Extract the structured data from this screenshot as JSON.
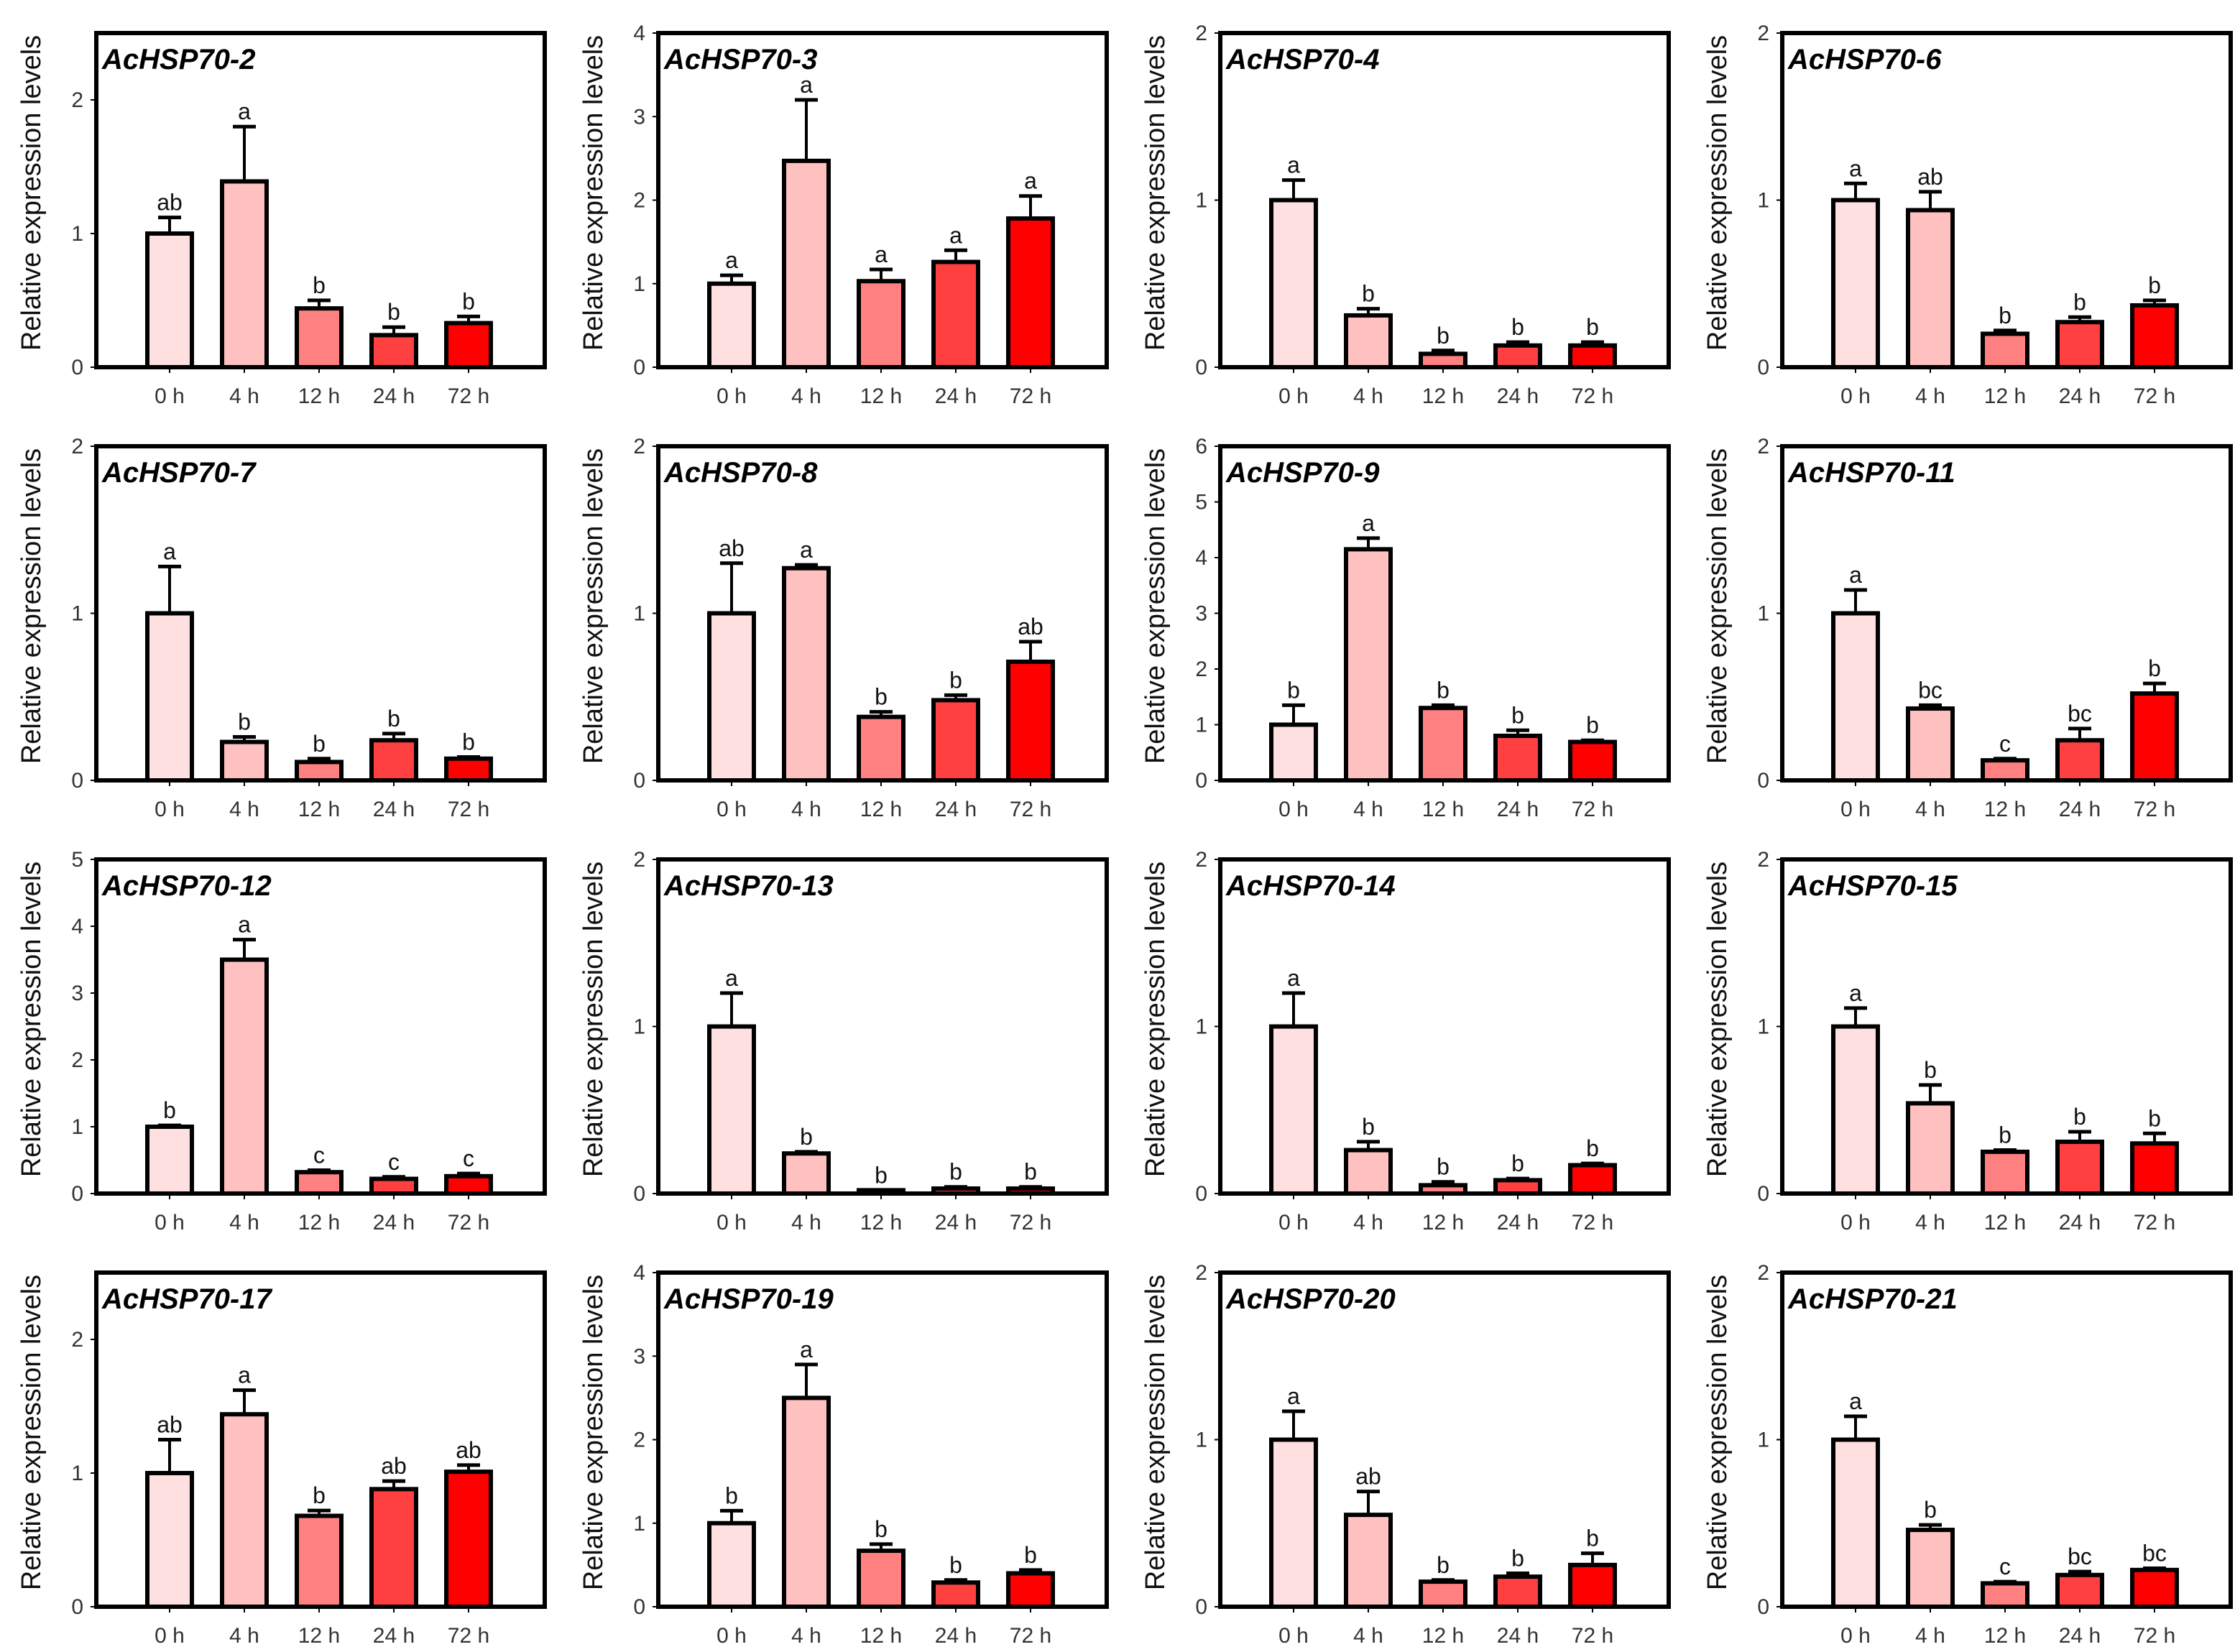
{
  "chart_data": {
    "type": "bar",
    "categories": [
      "0 h",
      "4 h",
      "12 h",
      "24 h",
      "72 h"
    ],
    "ylabel": "Relative expression levels",
    "bar_colors": [
      "#FFE0E0",
      "#FFC0C0",
      "#FF8080",
      "#FF4040",
      "#FF0000"
    ],
    "charts": [
      {
        "title": "AcHSP70-2",
        "ylim": [
          0,
          2.5
        ],
        "yticks": [
          "0",
          "1",
          "2"
        ],
        "values": [
          1.0,
          1.39,
          0.44,
          0.24,
          0.33
        ],
        "errors": [
          0.12,
          0.41,
          0.06,
          0.06,
          0.05
        ],
        "letters": [
          "ab",
          "a",
          "b",
          "b",
          "b"
        ]
      },
      {
        "title": "AcHSP70-3",
        "ylim": [
          0,
          4
        ],
        "yticks": [
          "0",
          "1",
          "2",
          "3",
          "4"
        ],
        "values": [
          1.0,
          2.47,
          1.03,
          1.26,
          1.78
        ],
        "errors": [
          0.1,
          0.73,
          0.14,
          0.14,
          0.27
        ],
        "letters": [
          "a",
          "a",
          "a",
          "a",
          "a"
        ]
      },
      {
        "title": "AcHSP70-4",
        "ylim": [
          0,
          2
        ],
        "yticks": [
          "0",
          "1",
          "2"
        ],
        "values": [
          1.0,
          0.31,
          0.08,
          0.13,
          0.13
        ],
        "errors": [
          0.12,
          0.04,
          0.02,
          0.02,
          0.02
        ],
        "letters": [
          "a",
          "b",
          "b",
          "b",
          "b"
        ]
      },
      {
        "title": "AcHSP70-6",
        "ylim": [
          0,
          2
        ],
        "yticks": [
          "0",
          "1",
          "2"
        ],
        "values": [
          1.0,
          0.94,
          0.2,
          0.27,
          0.37
        ],
        "errors": [
          0.1,
          0.11,
          0.02,
          0.03,
          0.03
        ],
        "letters": [
          "a",
          "ab",
          "b",
          "b",
          "b"
        ]
      },
      {
        "title": "AcHSP70-7",
        "ylim": [
          0,
          2
        ],
        "yticks": [
          "0",
          "1",
          "2"
        ],
        "values": [
          1.0,
          0.23,
          0.11,
          0.24,
          0.13
        ],
        "errors": [
          0.28,
          0.03,
          0.02,
          0.04,
          0.01
        ],
        "letters": [
          "a",
          "b",
          "b",
          "b",
          "b"
        ]
      },
      {
        "title": "AcHSP70-8",
        "ylim": [
          0,
          2
        ],
        "yticks": [
          "0",
          "1",
          "2"
        ],
        "values": [
          1.0,
          1.27,
          0.38,
          0.48,
          0.71
        ],
        "errors": [
          0.3,
          0.02,
          0.03,
          0.03,
          0.12
        ],
        "letters": [
          "ab",
          "a",
          "b",
          "b",
          "ab"
        ]
      },
      {
        "title": "AcHSP70-9",
        "ylim": [
          0,
          6
        ],
        "yticks": [
          "0",
          "1",
          "2",
          "3",
          "4",
          "5",
          "6"
        ],
        "values": [
          1.0,
          4.15,
          1.3,
          0.8,
          0.69
        ],
        "errors": [
          0.35,
          0.2,
          0.05,
          0.1,
          0.03
        ],
        "letters": [
          "b",
          "a",
          "b",
          "b",
          "b"
        ]
      },
      {
        "title": "AcHSP70-11",
        "ylim": [
          0,
          2
        ],
        "yticks": [
          "0",
          "1",
          "2"
        ],
        "values": [
          1.0,
          0.43,
          0.12,
          0.24,
          0.52
        ],
        "errors": [
          0.14,
          0.02,
          0.01,
          0.07,
          0.06
        ],
        "letters": [
          "a",
          "bc",
          "c",
          "bc",
          "b"
        ]
      },
      {
        "title": "AcHSP70-12",
        "ylim": [
          0,
          5
        ],
        "yticks": [
          "0",
          "1",
          "2",
          "3",
          "4",
          "5"
        ],
        "values": [
          1.0,
          3.5,
          0.32,
          0.22,
          0.26
        ],
        "errors": [
          0.02,
          0.3,
          0.03,
          0.03,
          0.04
        ],
        "letters": [
          "b",
          "a",
          "c",
          "c",
          "c"
        ]
      },
      {
        "title": "AcHSP70-13",
        "ylim": [
          0,
          2
        ],
        "yticks": [
          "0",
          "1",
          "2"
        ],
        "values": [
          1.0,
          0.24,
          0.02,
          0.03,
          0.03
        ],
        "errors": [
          0.2,
          0.01,
          0.0,
          0.01,
          0.01
        ],
        "letters": [
          "a",
          "b",
          "b",
          "b",
          "b"
        ]
      },
      {
        "title": "AcHSP70-14",
        "ylim": [
          0,
          2
        ],
        "yticks": [
          "0",
          "1",
          "2"
        ],
        "values": [
          1.0,
          0.26,
          0.05,
          0.08,
          0.17
        ],
        "errors": [
          0.2,
          0.05,
          0.02,
          0.01,
          0.01
        ],
        "letters": [
          "a",
          "b",
          "b",
          "b",
          "b"
        ]
      },
      {
        "title": "AcHSP70-15",
        "ylim": [
          0,
          2
        ],
        "yticks": [
          "0",
          "1",
          "2"
        ],
        "values": [
          1.0,
          0.54,
          0.25,
          0.31,
          0.3
        ],
        "errors": [
          0.11,
          0.11,
          0.01,
          0.06,
          0.06
        ],
        "letters": [
          "a",
          "b",
          "b",
          "b",
          "b"
        ]
      },
      {
        "title": "AcHSP70-17",
        "ylim": [
          0,
          2.5
        ],
        "yticks": [
          "0",
          "1",
          "2"
        ],
        "values": [
          1.0,
          1.44,
          0.68,
          0.88,
          1.01
        ],
        "errors": [
          0.25,
          0.18,
          0.04,
          0.06,
          0.05
        ],
        "letters": [
          "ab",
          "a",
          "b",
          "ab",
          "ab"
        ]
      },
      {
        "title": "AcHSP70-19",
        "ylim": [
          0,
          4
        ],
        "yticks": [
          "0",
          "1",
          "2",
          "3",
          "4"
        ],
        "values": [
          1.0,
          2.5,
          0.67,
          0.29,
          0.4
        ],
        "errors": [
          0.15,
          0.4,
          0.08,
          0.03,
          0.04
        ],
        "letters": [
          "b",
          "a",
          "b",
          "b",
          "b"
        ]
      },
      {
        "title": "AcHSP70-20",
        "ylim": [
          0,
          2
        ],
        "yticks": [
          "0",
          "1",
          "2"
        ],
        "values": [
          1.0,
          0.55,
          0.15,
          0.18,
          0.25
        ],
        "errors": [
          0.17,
          0.14,
          0.01,
          0.02,
          0.07
        ],
        "letters": [
          "a",
          "ab",
          "b",
          "b",
          "b"
        ]
      },
      {
        "title": "AcHSP70-21",
        "ylim": [
          0,
          2
        ],
        "yticks": [
          "0",
          "1",
          "2"
        ],
        "values": [
          1.0,
          0.46,
          0.14,
          0.19,
          0.22
        ],
        "errors": [
          0.14,
          0.03,
          0.01,
          0.02,
          0.01
        ],
        "letters": [
          "a",
          "b",
          "c",
          "bc",
          "bc"
        ]
      }
    ]
  }
}
